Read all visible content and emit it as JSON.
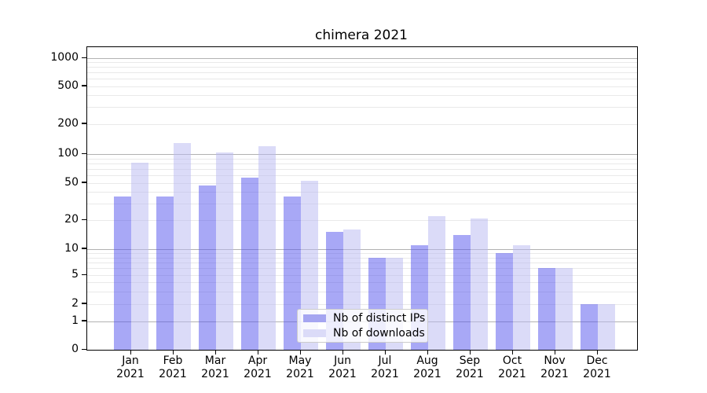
{
  "title": "chimera 2021",
  "chart_data": {
    "type": "bar",
    "title": "chimera 2021",
    "yscale": "symlog",
    "ylim": [
      0,
      1300
    ],
    "grid": true,
    "legend_position": "lower center",
    "x_months": [
      "Jan",
      "Feb",
      "Mar",
      "Apr",
      "May",
      "Jun",
      "Jul",
      "Aug",
      "Sep",
      "Oct",
      "Nov",
      "Dec"
    ],
    "x_year": "2021",
    "categories": [
      "Jan 2021",
      "Feb 2021",
      "Mar 2021",
      "Apr 2021",
      "May 2021",
      "Jun 2021",
      "Jul 2021",
      "Aug 2021",
      "Sep 2021",
      "Oct 2021",
      "Nov 2021",
      "Dec 2021"
    ],
    "yticks": [
      0,
      1,
      2,
      5,
      10,
      20,
      50,
      100,
      200,
      500,
      1000
    ],
    "minor_grid_values": [
      2,
      3,
      4,
      5,
      6,
      7,
      8,
      9,
      20,
      30,
      40,
      50,
      60,
      70,
      80,
      90,
      200,
      300,
      400,
      500,
      600,
      700,
      800,
      900
    ],
    "major_grid_values": [
      1,
      10,
      100,
      1000
    ],
    "series": [
      {
        "name": "Nb of distinct IPs",
        "color": "#a5a5f1",
        "fill_rgba": "rgba(81,81,237,0.5)",
        "values": [
          36,
          36,
          47,
          57,
          36,
          15,
          8,
          11,
          14,
          9,
          6,
          2
        ]
      },
      {
        "name": "Nb of downloads",
        "color": "#dbdbf8",
        "fill_rgba": "rgba(183,183,241,0.5)",
        "values": [
          82,
          130,
          103,
          119,
          53,
          16,
          8,
          22,
          21,
          11,
          6,
          2
        ]
      }
    ]
  }
}
